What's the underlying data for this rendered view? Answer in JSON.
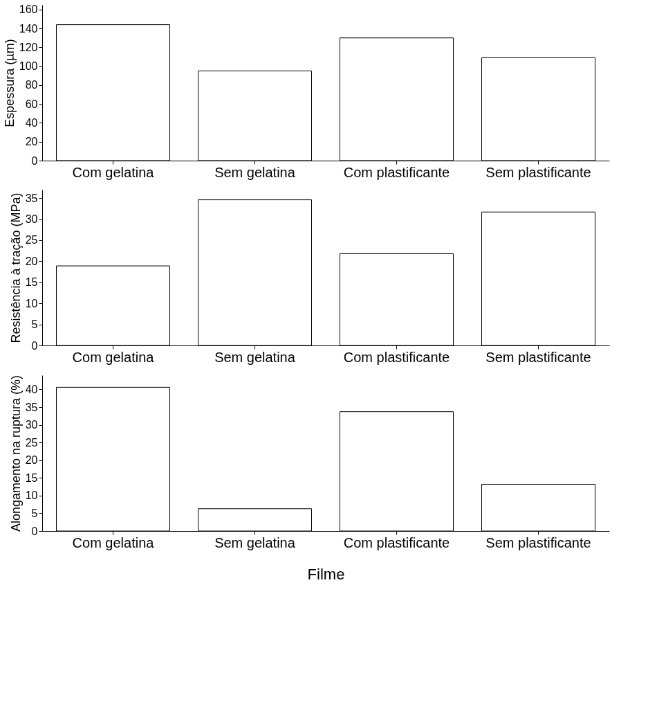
{
  "chart_data": [
    {
      "type": "bar",
      "categories": [
        "Com gelatina",
        "Sem gelatina",
        "Com plastificante",
        "Sem plastificante"
      ],
      "values": [
        144,
        95,
        130,
        109
      ],
      "ylabel": "Espessura (µm)",
      "ylim": [
        0,
        165
      ],
      "yticks": [
        0,
        20,
        40,
        60,
        80,
        100,
        120,
        140,
        160
      ],
      "grid": false
    },
    {
      "type": "bar",
      "categories": [
        "Com gelatina",
        "Sem gelatina",
        "Com plastificante",
        "Sem plastificante"
      ],
      "values": [
        18.9,
        34.6,
        21.8,
        31.7
      ],
      "ylabel": "Resistência à tração (MPa)",
      "ylim": [
        0,
        37
      ],
      "yticks": [
        0,
        5,
        10,
        15,
        20,
        25,
        30,
        35
      ],
      "grid": false
    },
    {
      "type": "bar",
      "categories": [
        "Com gelatina",
        "Sem gelatina",
        "Com plastificante",
        "Sem plastificante"
      ],
      "values": [
        40.6,
        6.3,
        33.7,
        13.2
      ],
      "ylabel": "Alongamento na ruptura (%)",
      "xlabel": "Filme",
      "ylim": [
        0,
        44
      ],
      "yticks": [
        0,
        5,
        10,
        15,
        20,
        25,
        30,
        35,
        40
      ],
      "grid": false
    }
  ]
}
